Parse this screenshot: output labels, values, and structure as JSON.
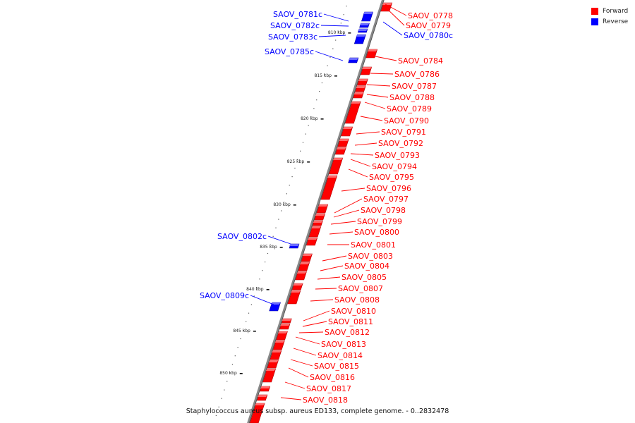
{
  "legend": {
    "forward_label": "Forward",
    "reverse_label": "Reverse",
    "forward_color": "#ff0000",
    "reverse_color": "#0000ff"
  },
  "caption": "Staphylococcus aureus subsp. aureus ED133, complete genome. - 0..2832478",
  "axis": {
    "ticks": [
      "810 kbp",
      "815 kbp",
      "820 kbp",
      "825 kbp",
      "830 kbp",
      "835 kbp",
      "840 kbp",
      "845 kbp",
      "850 kbp"
    ]
  },
  "genes": {
    "forward": [
      "SAOV_0778",
      "SAOV_0779",
      "SAOV_0784",
      "SAOV_0786",
      "SAOV_0787",
      "SAOV_0788",
      "SAOV_0789",
      "SAOV_0790",
      "SAOV_0791",
      "SAOV_0792",
      "SAOV_0793",
      "SAOV_0794",
      "SAOV_0795",
      "SAOV_0796",
      "SAOV_0797",
      "SAOV_0798",
      "SAOV_0799",
      "SAOV_0800",
      "SAOV_0801",
      "SAOV_0803",
      "SAOV_0804",
      "SAOV_0805",
      "SAOV_0807",
      "SAOV_0808",
      "SAOV_0810",
      "SAOV_0811",
      "SAOV_0812",
      "SAOV_0813",
      "SAOV_0814",
      "SAOV_0815",
      "SAOV_0816",
      "SAOV_0817",
      "SAOV_0818"
    ],
    "reverse_right": [
      "SAOV_0780c"
    ],
    "reverse_left": [
      "SAOV_0781c",
      "SAOV_0782c",
      "SAOV_0783c",
      "SAOV_0785c",
      "SAOV_0802c",
      "SAOV_0809c"
    ]
  }
}
